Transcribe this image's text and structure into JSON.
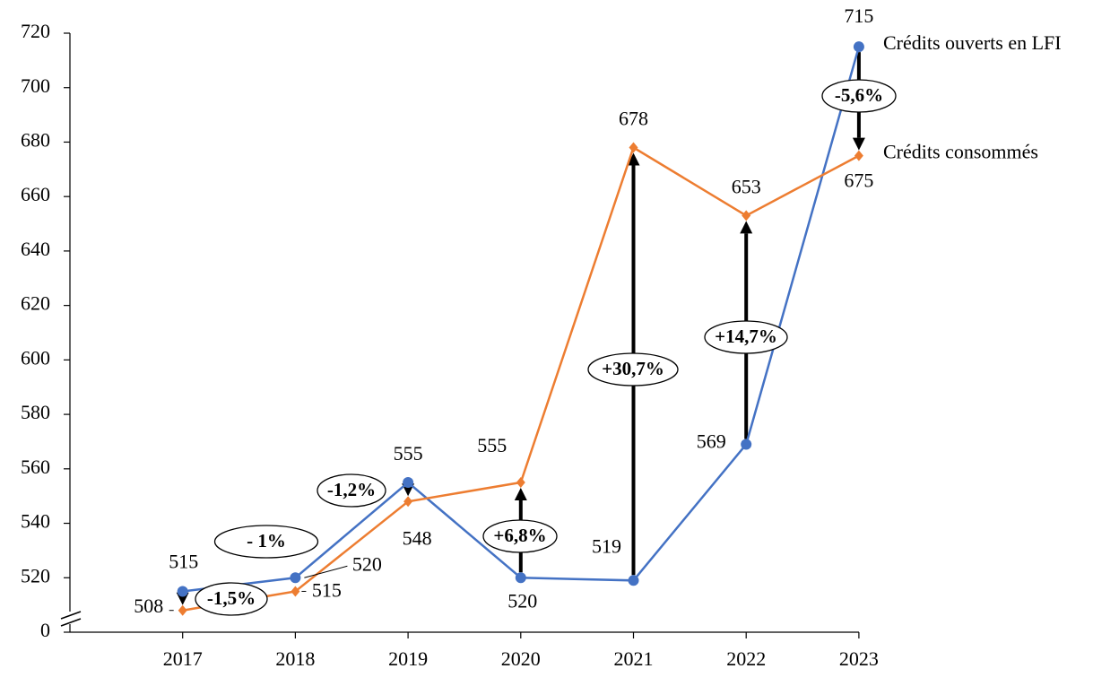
{
  "chart_data": {
    "type": "line",
    "categories": [
      "2017",
      "2018",
      "2019",
      "2020",
      "2021",
      "2022",
      "2023"
    ],
    "series": [
      {
        "name": "Crédits ouverts en LFI",
        "color": "#4472c4",
        "values": [
          515,
          520,
          555,
          520,
          519,
          569,
          715
        ]
      },
      {
        "name": "Crédits consommés",
        "color": "#ed7d31",
        "values": [
          508,
          515,
          548,
          555,
          678,
          653,
          675
        ]
      }
    ],
    "ylim": [
      500,
      720
    ],
    "yticks": [
      {
        "value": 500,
        "label": "0"
      },
      520,
      540,
      560,
      580,
      600,
      620,
      640,
      660,
      680,
      700,
      720
    ],
    "annotations": [
      "-1,5%",
      "- 1%",
      "-1,2%",
      "+6,8%",
      "+30,7%",
      "+14,7%",
      "-5,6%"
    ],
    "arrows": [
      true,
      false,
      true,
      true,
      true,
      true,
      true
    ],
    "grid": false
  }
}
